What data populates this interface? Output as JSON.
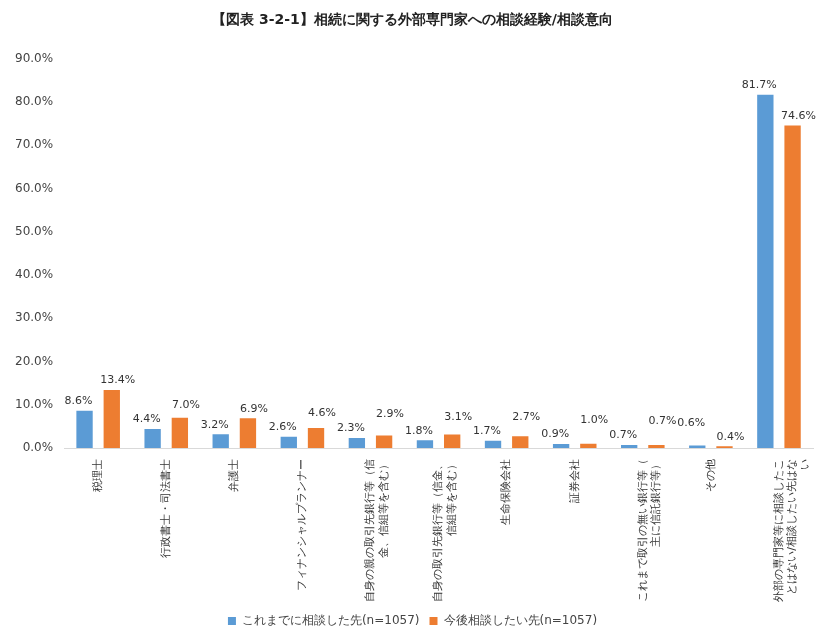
{
  "chart_data": {
    "type": "bar",
    "title": "【図表 3-2-1】相続に関する外部専門家への相談経験/相談意向",
    "categories": [
      "税理士",
      "行政書士・司法書士",
      "弁護士",
      "フィナンシャルプランナー",
      "自身の親の取引先銀行等（信金、信組等を含む）",
      "自身の取引先銀行等（信金、信組等を含む）",
      "生命保険会社",
      "証券会社",
      "これまで取引の無い銀行等（主に信託銀行等）",
      "その他",
      "外部の専門家等に相談したことはない/相談したい先はない"
    ],
    "series": [
      {
        "name": "これまでに相談した先(n=1057)",
        "color": "#5b9bd5",
        "values": [
          8.6,
          4.4,
          3.2,
          2.6,
          2.3,
          1.8,
          1.7,
          0.9,
          0.7,
          0.6,
          81.7
        ],
        "value_labels": [
          "8.6%",
          "4.4%",
          "3.2%",
          "2.6%",
          "2.3%",
          "1.8%",
          "1.7%",
          "0.9%",
          "0.7%",
          "0.6%",
          "81.7%"
        ]
      },
      {
        "name": "今後相談したい先(n=1057)",
        "color": "#ed7d31",
        "values": [
          13.4,
          7.0,
          6.9,
          4.6,
          2.9,
          3.1,
          2.7,
          1.0,
          0.7,
          0.4,
          74.6
        ],
        "value_labels": [
          "13.4%",
          "7.0%",
          "6.9%",
          "4.6%",
          "2.9%",
          "3.1%",
          "2.7%",
          "1.0%",
          "0.7%",
          "0.4%",
          "74.6%"
        ]
      }
    ],
    "ylim": [
      0,
      90
    ],
    "yticks": [
      {
        "value": 0,
        "label": "0.0%"
      },
      {
        "value": 10,
        "label": "10.0%"
      },
      {
        "value": 20,
        "label": "20.0%"
      },
      {
        "value": 30,
        "label": "30.0%"
      },
      {
        "value": 40,
        "label": "40.0%"
      },
      {
        "value": 50,
        "label": "50.0%"
      },
      {
        "value": 60,
        "label": "60.0%"
      },
      {
        "value": 70,
        "label": "70.0%"
      },
      {
        "value": 80,
        "label": "80.0%"
      },
      {
        "value": 90,
        "label": "90.0%"
      }
    ],
    "grid": false,
    "legend": "bottom",
    "data_labels": true
  }
}
